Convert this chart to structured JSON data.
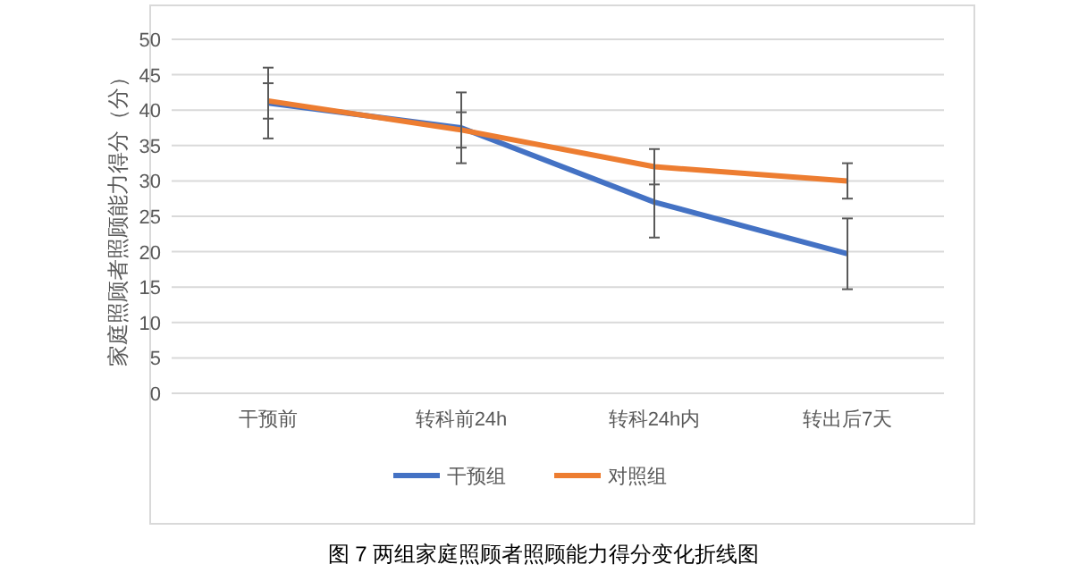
{
  "chart_data": {
    "type": "line",
    "ylabel": "家庭照顾者照顾能力得分（分）",
    "categories": [
      "干预前",
      "转科前24h",
      "转科24h内",
      "转出后7天"
    ],
    "series": [
      {
        "name": "干预组",
        "color": "#4472c4",
        "values": [
          41,
          37.5,
          27,
          19.7
        ],
        "errors": [
          5,
          5,
          5,
          5
        ]
      },
      {
        "name": "对照组",
        "color": "#ed7d31",
        "values": [
          41.3,
          37.2,
          32,
          30
        ],
        "errors": [
          2.5,
          2.5,
          2.5,
          2.5
        ]
      }
    ],
    "ylim": [
      0,
      50
    ],
    "yticks": [
      0,
      5,
      10,
      15,
      20,
      25,
      30,
      35,
      40,
      45,
      50
    ],
    "grid": "y",
    "legend": "bottom",
    "marker": "none",
    "line_style": "solid",
    "annotations": [
      "图 7 两组家庭照顾者照顾能力得分变化折线图"
    ]
  }
}
